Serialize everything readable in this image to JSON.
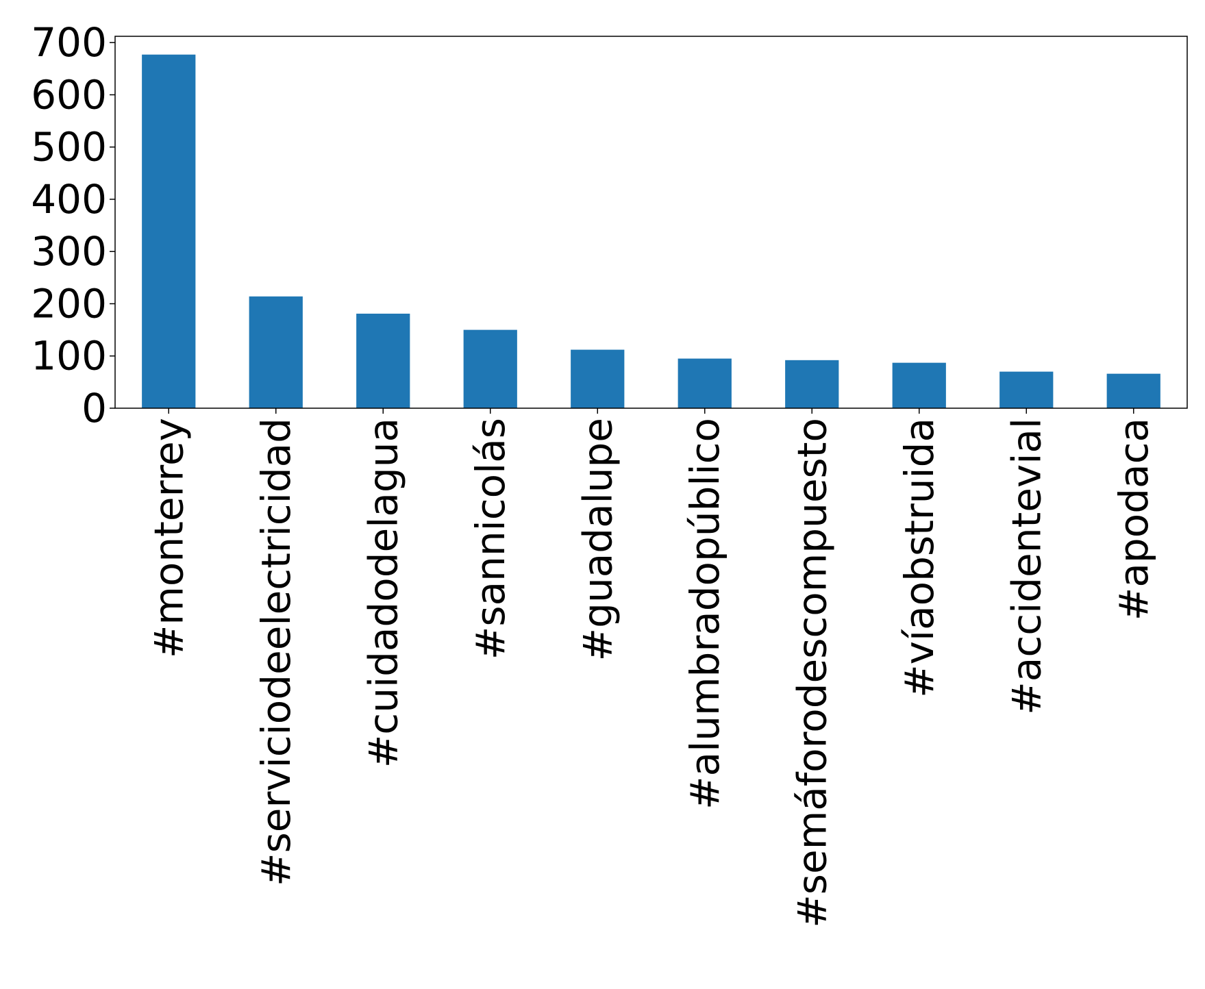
{
  "chart_data": {
    "type": "bar",
    "title": "",
    "xlabel": "",
    "ylabel": "",
    "categories": [
      "#monterrey",
      "#serviciodeelectricidad",
      "#cuidadodelagua",
      "#sannicolás",
      "#guadalupe",
      "#alumbradopúblico",
      "#semáforodescompuesto",
      "#víaobstruida",
      "#accidentevial",
      "#apodaca"
    ],
    "values": [
      677,
      214,
      181,
      150,
      112,
      95,
      92,
      87,
      70,
      66
    ],
    "ylim": [
      0,
      712
    ],
    "yticks": [
      0,
      100,
      200,
      300,
      400,
      500,
      600,
      700
    ],
    "grid": false,
    "legend": "none",
    "bar_color": "#1f77b4"
  }
}
